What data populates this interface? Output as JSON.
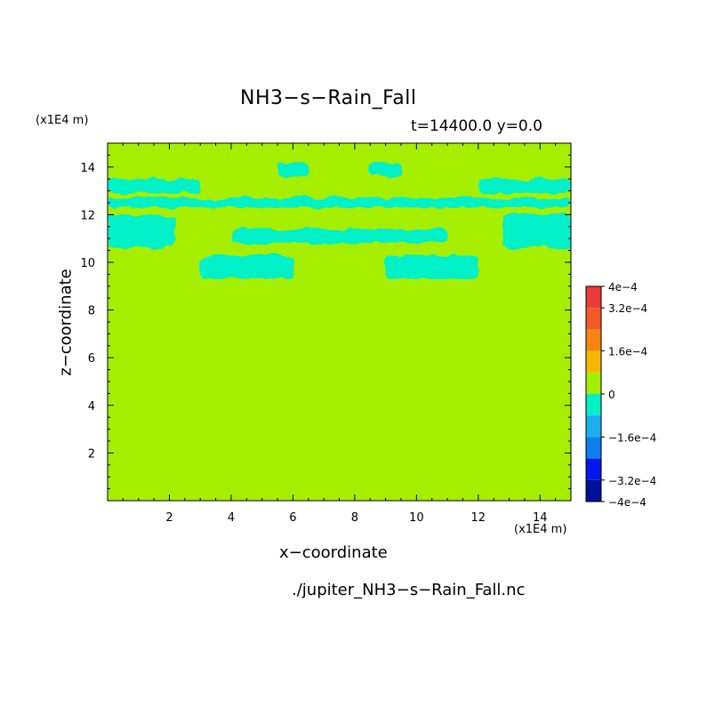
{
  "chart_data": {
    "type": "heatmap",
    "title": "NH3−s−Rain_Fall",
    "subtitle": "t=14400.0 y=0.0",
    "xlabel": "x−coordinate",
    "ylabel": "z−coordinate",
    "x_unit": "(x1E4 m)",
    "y_unit": "(x1E4 m)",
    "source": "./jupiter_NH3−s−Rain_Fall.nc",
    "xlim": [
      0,
      15
    ],
    "ylim": [
      0,
      15
    ],
    "x_ticks": [
      "2",
      "4",
      "6",
      "8",
      "10",
      "12",
      "14"
    ],
    "y_ticks": [
      "2",
      "4",
      "6",
      "8",
      "10",
      "12",
      "14"
    ],
    "background_value": 0,
    "colorbar": {
      "range": [
        -0.0004,
        0.0004
      ],
      "labels": [
        "4e−4",
        "3.2e−4",
        "1.6e−4",
        "0",
        "−1.6e−4",
        "−3.2e−4",
        "−4e−4"
      ],
      "colors": [
        "#ee3a3a",
        "#f25a28",
        "#f78510",
        "#f9b600",
        "#a6ee00",
        "#00f0c8",
        "#1ab0f0",
        "#0e7ff0",
        "#0018ee",
        "#00109a"
      ]
    },
    "negative_regions": [
      {
        "x": [
          0,
          15
        ],
        "z": [
          12.3,
          12.7
        ]
      },
      {
        "x": [
          0,
          2.2
        ],
        "z": [
          10.6,
          12.0
        ]
      },
      {
        "x": [
          12.8,
          15
        ],
        "z": [
          10.6,
          12.0
        ]
      },
      {
        "x": [
          0,
          3
        ],
        "z": [
          12.9,
          13.5
        ]
      },
      {
        "x": [
          12,
          15
        ],
        "z": [
          12.9,
          13.5
        ]
      },
      {
        "x": [
          4,
          11
        ],
        "z": [
          10.8,
          11.4
        ]
      },
      {
        "x": [
          3,
          6
        ],
        "z": [
          9.3,
          10.3
        ]
      },
      {
        "x": [
          9,
          12
        ],
        "z": [
          9.3,
          10.3
        ]
      },
      {
        "x": [
          5.5,
          6.5
        ],
        "z": [
          13.6,
          14.2
        ]
      },
      {
        "x": [
          8.5,
          9.5
        ],
        "z": [
          13.6,
          14.2
        ]
      }
    ]
  }
}
